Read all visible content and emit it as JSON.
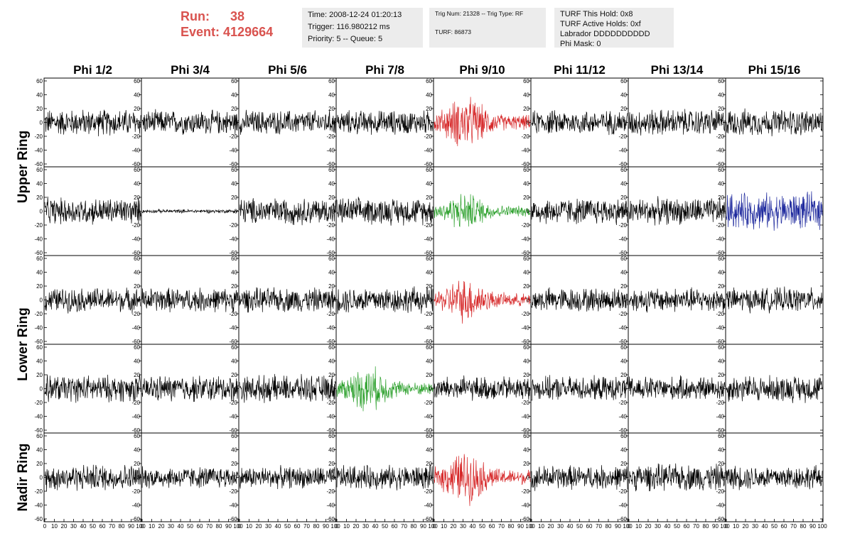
{
  "header": {
    "run_label": "Run:",
    "run_value": "38",
    "event_label": "Event:",
    "event_value": "4129664",
    "time_line": "Time: 2008-12-24 01:20:13",
    "trigger_line": "Trigger: 116.980212 ms",
    "priority_line": "Priority: 5 -- Queue: 5",
    "trig_num_line": "Trig Num: 21328 -- Trig Type: RF",
    "turf_line": "TURF: 86873",
    "turf_hold_line": "TURF This Hold: 0x8",
    "turf_active_line": "TURF Active Holds: 0xf",
    "labrador_line": "Labrador DDDDDDDDDD",
    "phi_mask_line": "Phi Mask: 0"
  },
  "colors": {
    "run_text": "#d9534f",
    "info_bg": "#ececec",
    "trace_default": "#000000",
    "trace_red": "#d62728",
    "trace_green": "#2ca02c",
    "trace_blue": "#1f2a9e"
  },
  "chart_data": {
    "type": "line",
    "title": "",
    "columns": [
      "Phi 1/2",
      "Phi 3/4",
      "Phi 5/6",
      "Phi 7/8",
      "Phi 9/10",
      "Phi 11/12",
      "Phi 13/14",
      "Phi 15/16"
    ],
    "row_groups": [
      {
        "label": "Upper Ring",
        "rows": [
          0,
          1
        ]
      },
      {
        "label": "Lower Ring",
        "rows": [
          2,
          3
        ]
      },
      {
        "label": "Nadir Ring",
        "rows": [
          4
        ]
      }
    ],
    "xlim": [
      0,
      100
    ],
    "ylim": [
      -60,
      60
    ],
    "x_ticks": [
      0,
      10,
      20,
      30,
      40,
      50,
      60,
      70,
      80,
      90,
      100
    ],
    "y_ticks": [
      -60,
      -40,
      -20,
      0,
      20,
      40,
      60
    ],
    "grid": false,
    "panels": [
      [
        {
          "color": "black",
          "amplitude": 22,
          "style": "noise"
        },
        {
          "color": "black",
          "amplitude": 20,
          "style": "noise"
        },
        {
          "color": "black",
          "amplitude": 20,
          "style": "noise"
        },
        {
          "color": "black",
          "amplitude": 20,
          "style": "noise"
        },
        {
          "color": "red",
          "amplitude": 35,
          "style": "burst"
        },
        {
          "color": "black",
          "amplitude": 20,
          "style": "noise"
        },
        {
          "color": "black",
          "amplitude": 22,
          "style": "noise"
        },
        {
          "color": "black",
          "amplitude": 22,
          "style": "noise"
        }
      ],
      [
        {
          "color": "black",
          "amplitude": 22,
          "style": "noise"
        },
        {
          "color": "black",
          "amplitude": 3,
          "style": "flat"
        },
        {
          "color": "black",
          "amplitude": 22,
          "style": "noise"
        },
        {
          "color": "black",
          "amplitude": 22,
          "style": "noise"
        },
        {
          "color": "green",
          "amplitude": 25,
          "style": "burst"
        },
        {
          "color": "black",
          "amplitude": 22,
          "style": "noise"
        },
        {
          "color": "black",
          "amplitude": 22,
          "style": "noise"
        },
        {
          "color": "blue",
          "amplitude": 30,
          "style": "noise"
        }
      ],
      [
        {
          "color": "black",
          "amplitude": 20,
          "style": "noise"
        },
        {
          "color": "black",
          "amplitude": 20,
          "style": "noise"
        },
        {
          "color": "black",
          "amplitude": 20,
          "style": "noise"
        },
        {
          "color": "black",
          "amplitude": 22,
          "style": "noise"
        },
        {
          "color": "red",
          "amplitude": 30,
          "style": "burst"
        },
        {
          "color": "black",
          "amplitude": 20,
          "style": "noise"
        },
        {
          "color": "black",
          "amplitude": 20,
          "style": "noise"
        },
        {
          "color": "black",
          "amplitude": 20,
          "style": "noise"
        }
      ],
      [
        {
          "color": "black",
          "amplitude": 22,
          "style": "noise"
        },
        {
          "color": "black",
          "amplitude": 22,
          "style": "noise"
        },
        {
          "color": "black",
          "amplitude": 22,
          "style": "noise"
        },
        {
          "color": "green",
          "amplitude": 30,
          "style": "burst"
        },
        {
          "color": "black",
          "amplitude": 20,
          "style": "noise"
        },
        {
          "color": "black",
          "amplitude": 20,
          "style": "noise"
        },
        {
          "color": "black",
          "amplitude": 20,
          "style": "noise"
        },
        {
          "color": "black",
          "amplitude": 22,
          "style": "noise"
        }
      ],
      [
        {
          "color": "black",
          "amplitude": 22,
          "style": "noise"
        },
        {
          "color": "black",
          "amplitude": 18,
          "style": "noise"
        },
        {
          "color": "black",
          "amplitude": 18,
          "style": "noise"
        },
        {
          "color": "black",
          "amplitude": 20,
          "style": "noise"
        },
        {
          "color": "red",
          "amplitude": 35,
          "style": "burst"
        },
        {
          "color": "black",
          "amplitude": 20,
          "style": "noise"
        },
        {
          "color": "black",
          "amplitude": 22,
          "style": "noise"
        },
        {
          "color": "black",
          "amplitude": 20,
          "style": "noise"
        }
      ]
    ]
  }
}
